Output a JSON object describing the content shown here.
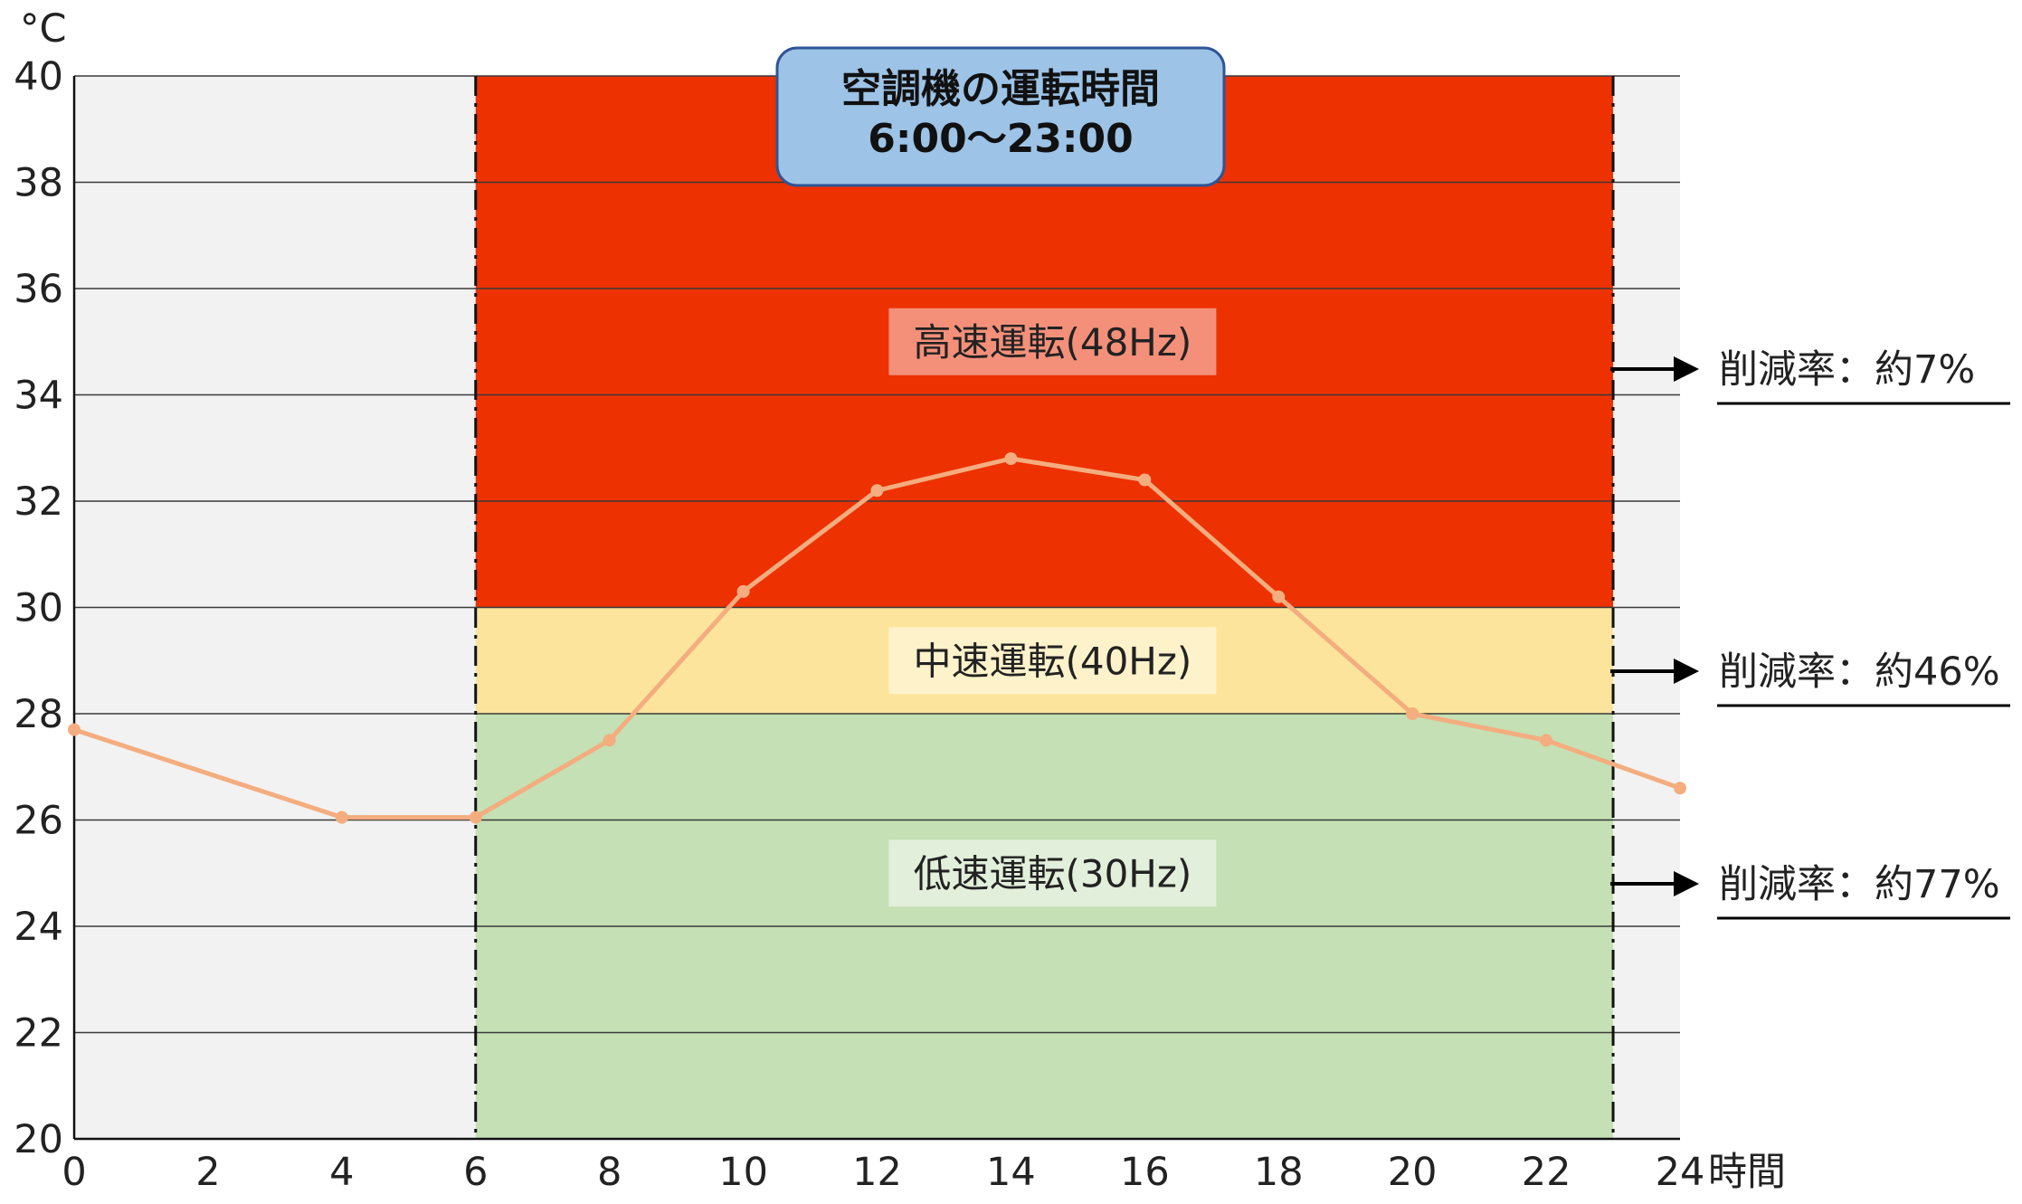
{
  "chart_data": {
    "type": "line",
    "ylabel": "°C",
    "xlabel": "時間",
    "xlim": [
      0,
      24
    ],
    "ylim": [
      20,
      40
    ],
    "x_ticks": [
      0,
      2,
      4,
      6,
      8,
      10,
      12,
      14,
      16,
      18,
      20,
      22,
      24
    ],
    "y_ticks": [
      20,
      22,
      24,
      26,
      28,
      30,
      32,
      34,
      36,
      38,
      40
    ],
    "grid": true,
    "series": [
      {
        "color": "#f4ad7f",
        "x": [
          0,
          4,
          6,
          8,
          10,
          12,
          14,
          16,
          18,
          20,
          22,
          24
        ],
        "values": [
          27.7,
          26.05,
          26.05,
          27.5,
          30.3,
          32.2,
          32.8,
          32.4,
          30.2,
          28.0,
          27.5,
          26.6
        ]
      }
    ],
    "operation_window": {
      "x_start": 6,
      "x_end": 23
    },
    "title_box": {
      "line1": "空調機の運転時間",
      "line2": "6:00〜23:00",
      "fill": "#9dc3e6",
      "stroke": "#2f5597"
    },
    "zones": [
      {
        "label": "高速運転(48Hz)",
        "y_from": 30,
        "y_to": 40,
        "fill": "#ee3100",
        "label_bg": "#f4907a",
        "label_y": 35,
        "reduction": "削減率：約7%"
      },
      {
        "label": "中速運転(40Hz)",
        "y_from": 28,
        "y_to": 30,
        "fill": "#fde49c",
        "label_bg": "#fef2cb",
        "label_y": 29,
        "reduction": "削減率：約46%"
      },
      {
        "label": "低速運転(30Hz)",
        "y_from": 20,
        "y_to": 28,
        "fill": "#c5e0b4",
        "label_bg": "#e2efda",
        "label_y": 25,
        "reduction": "削減率：約77%"
      }
    ],
    "background_fill": "#f2f2f2"
  }
}
